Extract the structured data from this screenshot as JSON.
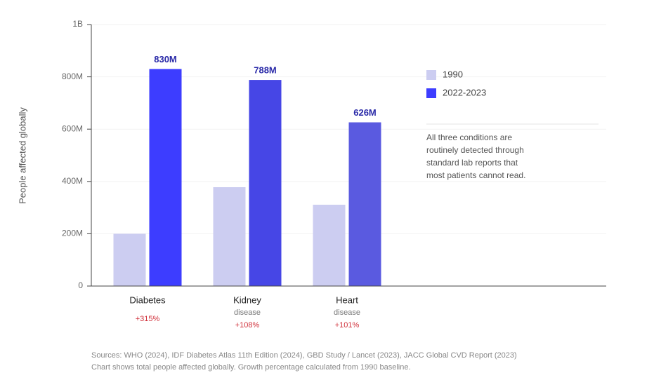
{
  "chart_data": {
    "type": "bar",
    "y_label": "People affected globally",
    "categories": [
      "Diabetes",
      "Kidney",
      "Heart"
    ],
    "category_sublabels": [
      null,
      "disease",
      "disease"
    ],
    "growth_labels": [
      "+315%",
      "+108%",
      "+101%"
    ],
    "series": [
      {
        "name": "1990",
        "color": "#cccdf1",
        "values": [
          200,
          378,
          311
        ]
      },
      {
        "name": "2022-2023",
        "color": "#3d3dff",
        "colors": [
          "#3d3dff",
          "#4646e6",
          "#5a5ae0"
        ],
        "values": [
          830,
          788,
          626
        ],
        "value_labels": [
          "830M",
          "788M",
          "626M"
        ]
      }
    ],
    "ylim": [
      0,
      1000
    ],
    "yticks": [
      0,
      {
        "value": 200,
        "label": "200M"
      },
      {
        "value": 400,
        "label": "400M"
      },
      {
        "value": 600,
        "label": "600M"
      },
      {
        "value": 800,
        "label": "800M"
      },
      {
        "value": 1000,
        "label": "1B"
      }
    ],
    "grid": true,
    "annotation": [
      "All three conditions are",
      "routinely detected through",
      "standard lab reports that",
      "most patients cannot read."
    ],
    "footnotes": [
      "Sources: WHO (2024), IDF Diabetes Atlas 11th Edition (2024), GBD Study / Lancet (2023), JACC Global CVD Report (2023)",
      "Chart shows total people affected globally. Growth percentage calculated from 1990 baseline."
    ]
  }
}
